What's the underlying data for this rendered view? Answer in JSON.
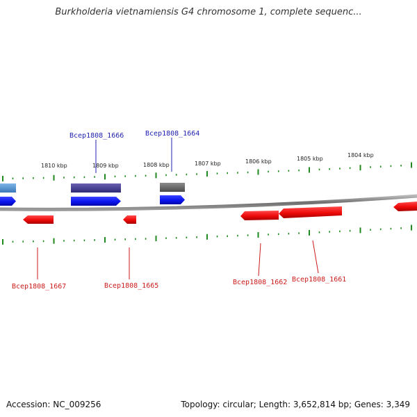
{
  "title": "Burkholderia vietnamiensis G4 chromosome 1, complete sequenc...",
  "accession_label": "Accession: NC_009256",
  "summary": "Topology: circular; Length: 3,652,814 bp; Genes: 3,349",
  "colors": {
    "forward_gene": "#0a14ee",
    "reverse_gene": "#ee0a0a",
    "tick": "#1f8a1f",
    "backbone": "#8a8a8a",
    "forward_label": "#2020b0",
    "reverse_label": "#cc1a1a"
  },
  "scale": {
    "ticks": [
      {
        "label": "1810 kbp"
      },
      {
        "label": "1809 kbp"
      },
      {
        "label": "1808 kbp"
      },
      {
        "label": "1807 kbp"
      },
      {
        "label": "1806 kbp"
      },
      {
        "label": "1805 kbp"
      },
      {
        "label": "1804 kbp"
      }
    ]
  },
  "gene_labels": {
    "forward": [
      "Bcep1808_1666",
      "Bcep1808_1664"
    ],
    "reverse": [
      "Bcep1808_1667",
      "Bcep1808_1665",
      "Bcep1808_1662",
      "Bcep1808_1661"
    ]
  }
}
